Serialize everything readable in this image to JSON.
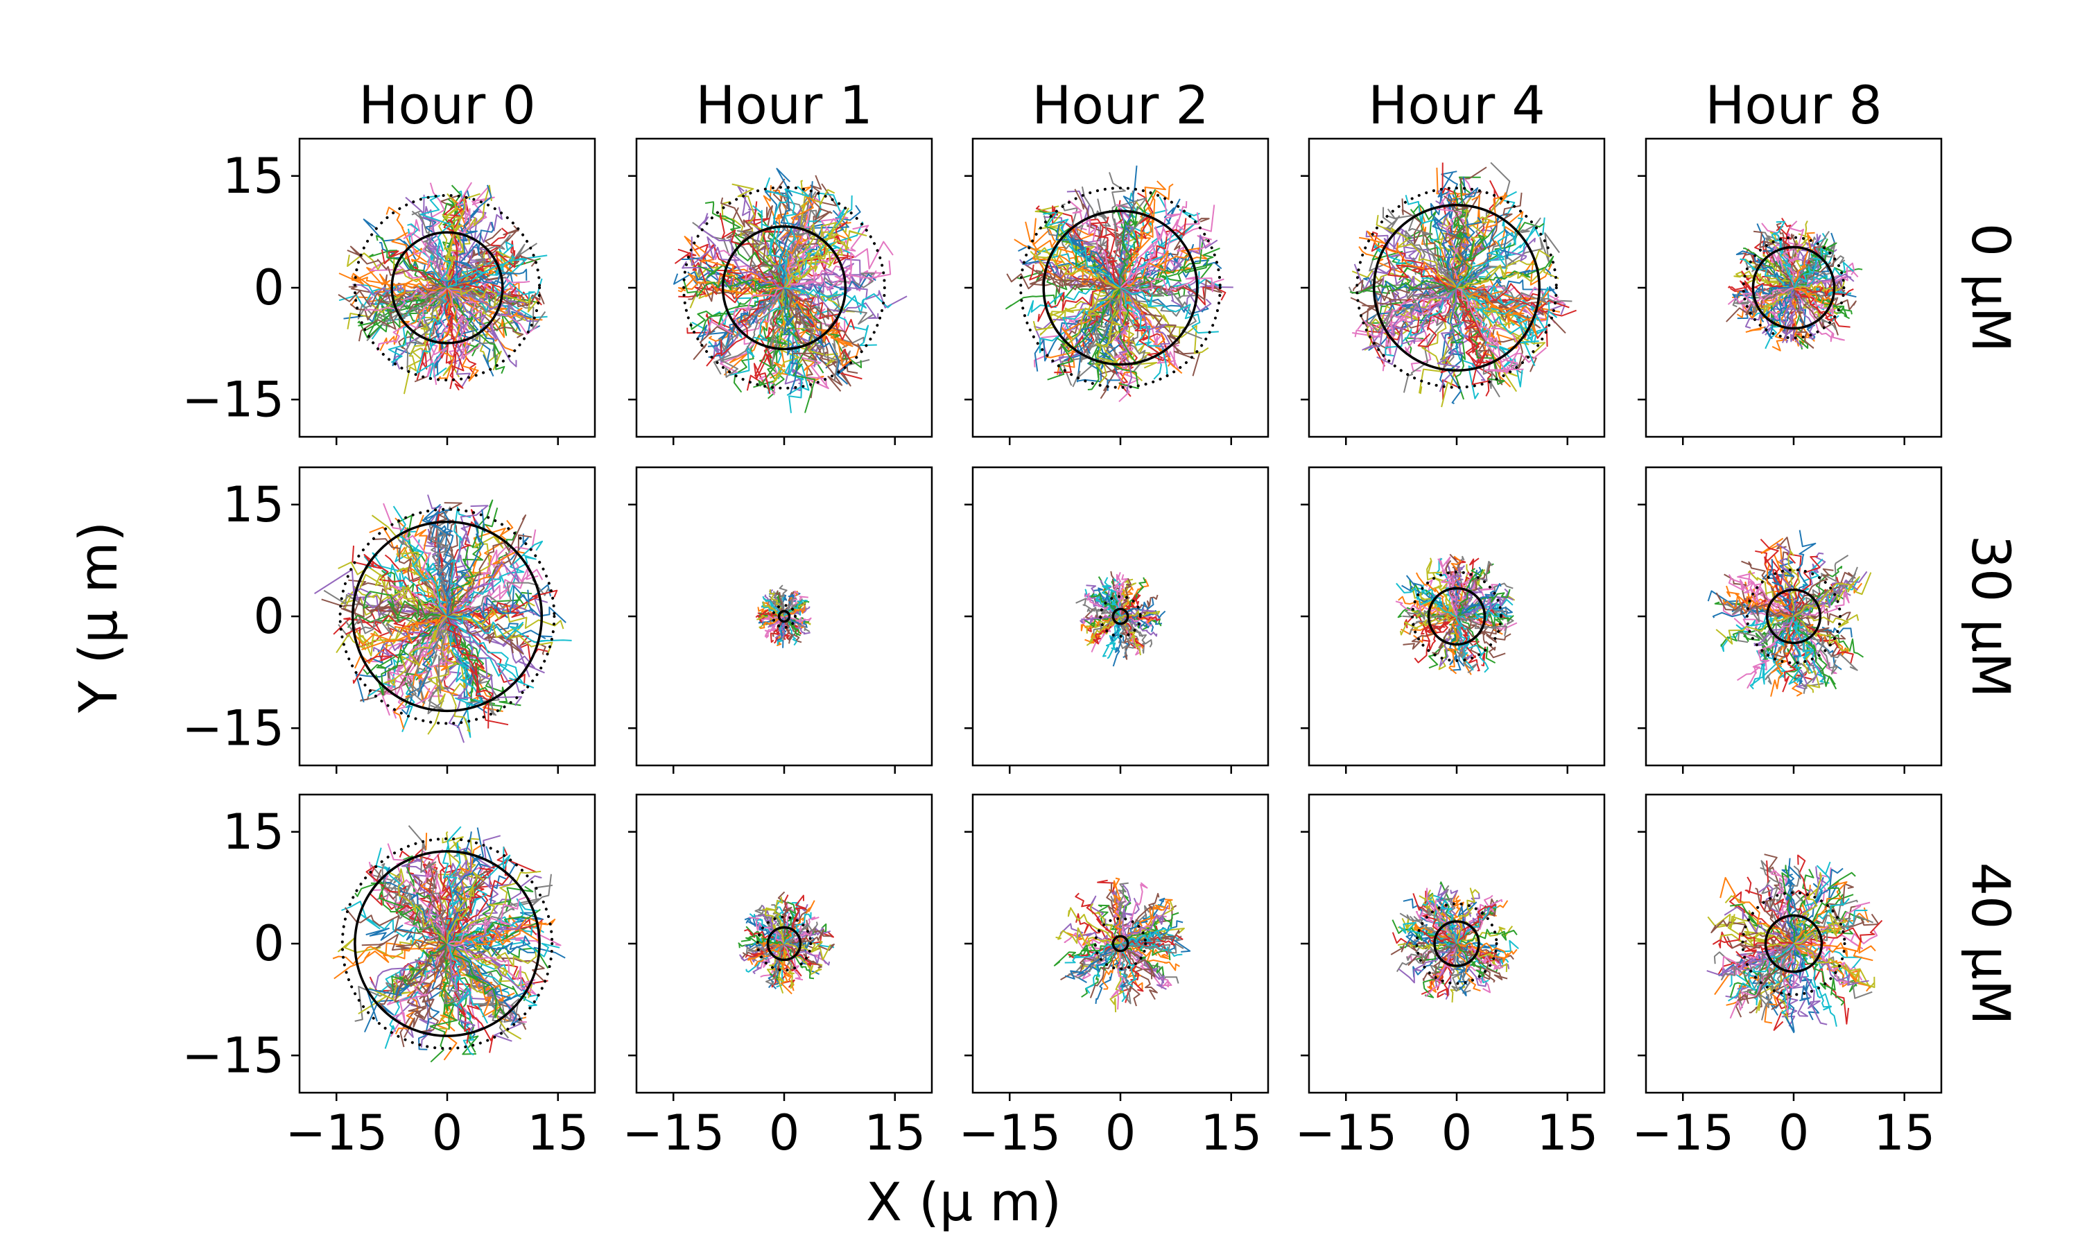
{
  "chart_data": {
    "type": "scatter",
    "description_type": "grid of trajectory plots",
    "col_titles": [
      "Hour 0",
      "Hour 1",
      "Hour 2",
      "Hour 4",
      "Hour 8"
    ],
    "row_labels": [
      "0 μM",
      "30 μM",
      "40 μM"
    ],
    "xlabel": "X (μ m)",
    "ylabel": "Y (μ m)",
    "xlim": [
      -20,
      20
    ],
    "ylim": [
      -20,
      20
    ],
    "ticks": [
      -15,
      0,
      15
    ],
    "tick_labels": [
      "−15",
      "0",
      "15"
    ],
    "grid": false,
    "panels": [
      [
        {
          "solid_radius": 7.5,
          "dotted_radius": 12.5,
          "spread": 14.0,
          "n_tracks": 150
        },
        {
          "solid_radius": 8.3,
          "dotted_radius": 13.6,
          "spread": 15.5,
          "n_tracks": 150
        },
        {
          "solid_radius": 10.4,
          "dotted_radius": 13.5,
          "spread": 15.0,
          "n_tracks": 150
        },
        {
          "solid_radius": 11.2,
          "dotted_radius": 13.5,
          "spread": 15.5,
          "n_tracks": 150
        },
        {
          "solid_radius": 5.5,
          "dotted_radius": 6.8,
          "spread": 9.0,
          "n_tracks": 120
        }
      ],
      [
        {
          "solid_radius": 12.8,
          "dotted_radius": 14.5,
          "spread": 16.0,
          "n_tracks": 150
        },
        {
          "solid_radius": 0.7,
          "dotted_radius": 1.5,
          "spread": 4.0,
          "n_tracks": 80
        },
        {
          "solid_radius": 1.0,
          "dotted_radius": 2.7,
          "spread": 6.0,
          "n_tracks": 80
        },
        {
          "solid_radius": 3.8,
          "dotted_radius": 6.0,
          "spread": 8.5,
          "n_tracks": 100
        },
        {
          "solid_radius": 3.6,
          "dotted_radius": 6.3,
          "spread": 11.0,
          "n_tracks": 100
        }
      ],
      [
        {
          "solid_radius": 12.5,
          "dotted_radius": 14.2,
          "spread": 15.5,
          "n_tracks": 150
        },
        {
          "solid_radius": 2.2,
          "dotted_radius": 3.6,
          "spread": 6.5,
          "n_tracks": 90
        },
        {
          "solid_radius": 1.0,
          "dotted_radius": 3.4,
          "spread": 9.0,
          "n_tracks": 90
        },
        {
          "solid_radius": 3.0,
          "dotted_radius": 5.4,
          "spread": 8.5,
          "n_tracks": 100
        },
        {
          "solid_radius": 3.8,
          "dotted_radius": 6.9,
          "spread": 12.5,
          "n_tracks": 110
        }
      ]
    ],
    "track_colors": [
      "#1f77b4",
      "#ff7f0e",
      "#2ca02c",
      "#d62728",
      "#9467bd",
      "#8c564b",
      "#e377c2",
      "#7f7f7f",
      "#bcbd22",
      "#17becf"
    ],
    "circle_color": "#000000"
  }
}
